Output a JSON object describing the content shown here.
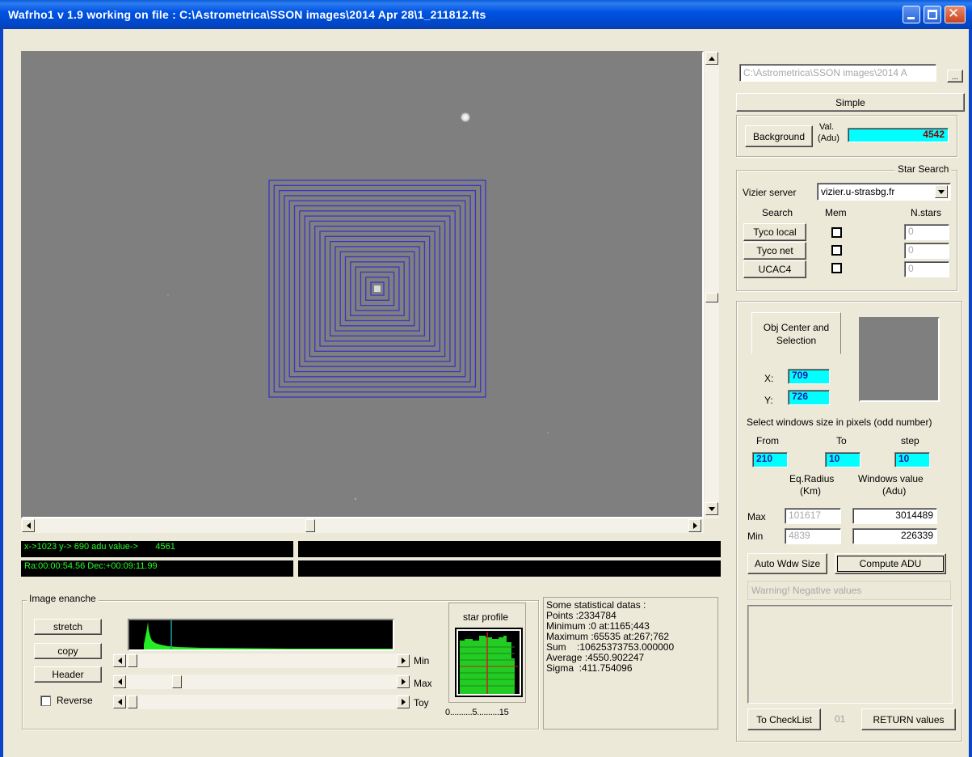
{
  "window": {
    "title": "Wafrho1 v 1.9 working on file : C:\\Astrometrica\\SSON images\\2014 Apr 28\\1_211812.fts"
  },
  "file_panel": {
    "path": "C:\\Astrometrica\\SSON images\\2014 A",
    "browse_label": "...",
    "mode_label": "Simple"
  },
  "background": {
    "button_label": "Background",
    "val_label": "Val.",
    "unit_label": "(Adu)",
    "value": "4542"
  },
  "star_search": {
    "legend": "Star Search",
    "server_label": "Vizier server",
    "server_value": "vizier.u-strasbg.fr",
    "col_search": "Search",
    "col_mem": "Mem",
    "col_nstars": "N.stars",
    "rows": [
      {
        "label": "Tyco local",
        "count": "0"
      },
      {
        "label": "Tyco net",
        "count": "0"
      },
      {
        "label": "UCAC4",
        "count": "0"
      }
    ]
  },
  "obj_center": {
    "tab_label": "Obj Center and Selection",
    "x_label": "X:",
    "x_value": "709",
    "y_label": "Y:",
    "y_value": "726",
    "window_size_label": "Select windows size in pixels (odd number)",
    "from_label": "From",
    "to_label": "To",
    "step_label": "step",
    "from_value": "210",
    "to_value": "10",
    "step_value": "10",
    "eq_radius_label": "Eq.Radius",
    "eq_radius_unit": "(Km)",
    "windows_value_label": "Windows value",
    "windows_value_unit": "(Adu)",
    "max_label": "Max",
    "min_label": "Min",
    "max_radius": "101617",
    "min_radius": "4839",
    "max_value": "3014489",
    "min_value": "226339",
    "auto_button": "Auto Wdw Size",
    "compute_button": "Compute ADU",
    "warning": "Warning! Negative values",
    "checklist_button": "To CheckList",
    "checklist_count": "01",
    "return_button": "RETURN values"
  },
  "status": {
    "line1": "x->1023 y-> 690 adu value->       4561",
    "line2": "Ra:00:00:54.56 Dec:+00:09:11.99"
  },
  "image_enhance": {
    "legend": "Image enanche",
    "stretch": "stretch",
    "copy": "copy",
    "header": "Header",
    "reverse": "Reverse",
    "min": "Min",
    "max": "Max",
    "toy": "Toy"
  },
  "star_profile": {
    "title": "star profile",
    "axis_ticks": "0..........5..........15"
  },
  "statistics": {
    "text": "Some statistical datas :\nPoints :2334784\nMinimum :0 at:1165;443\nMaximum :65535 at:267;762\nSum    :10625373753.000000\nAverage :4550.902247\nSigma  :411.754096"
  },
  "colors": {
    "image_bg": "#7f7f7f",
    "squares": "#3a34c9",
    "status_text": "#24ff24",
    "histogram": "#22ee22",
    "cyan_field": "#00ffff"
  }
}
